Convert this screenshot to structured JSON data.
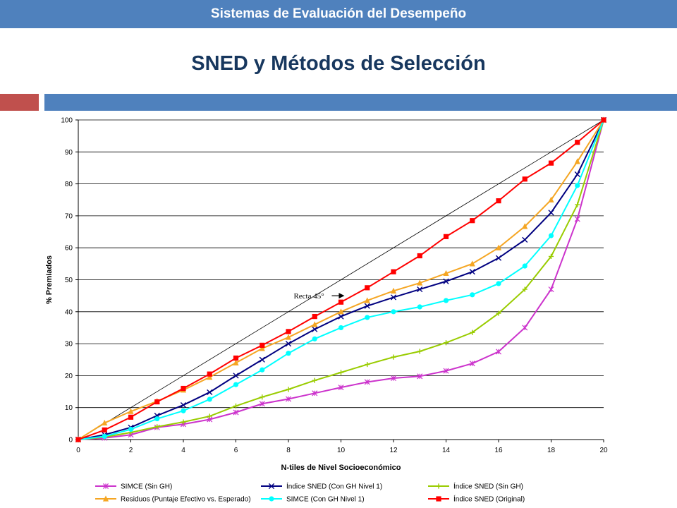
{
  "header": {
    "title": "Sistemas de Evaluación del Desempeño"
  },
  "slide": {
    "title": "SNED y Métodos de Selección"
  },
  "colors": {
    "header_bar": "#4f81bd",
    "accent_red": "#c0504d",
    "title_text": "#17375e"
  },
  "chart_data": {
    "type": "line",
    "xlabel": "N-tiles de Nivel Socioeconómico",
    "ylabel": "% Premiados",
    "xlim": [
      0,
      20
    ],
    "ylim": [
      0,
      100
    ],
    "x_ticks": [
      0,
      2,
      4,
      6,
      8,
      10,
      12,
      14,
      16,
      18,
      20
    ],
    "y_ticks": [
      0,
      10,
      20,
      30,
      40,
      50,
      60,
      70,
      80,
      90,
      100
    ],
    "grid": "horizontal",
    "legend_position": "bottom",
    "annotation": {
      "text": "Recta 45°",
      "x": 8.2,
      "y": 45
    },
    "x": [
      0,
      1,
      2,
      3,
      4,
      5,
      6,
      7,
      8,
      9,
      10,
      11,
      12,
      13,
      14,
      15,
      16,
      17,
      18,
      19,
      20
    ],
    "series": [
      {
        "name": "SIMCE (Sin GH)",
        "color": "#cc33cc",
        "marker": "star",
        "values": [
          0,
          0.5,
          1.5,
          3.8,
          4.8,
          6.3,
          8.5,
          11.2,
          12.7,
          14.5,
          16.3,
          18,
          19.2,
          19.8,
          21.5,
          23.8,
          27.5,
          35,
          47,
          69,
          100
        ]
      },
      {
        "name": "Índice SNED (Con GH Nivel 1)",
        "color": "#000080",
        "marker": "x",
        "values": [
          0,
          1.5,
          3.8,
          7.5,
          10.8,
          14.8,
          20,
          25,
          30,
          34.5,
          38.5,
          41.8,
          44.5,
          47,
          49.5,
          52.5,
          56.8,
          62.5,
          71,
          83,
          100
        ]
      },
      {
        "name": "Índice SNED (Sin GH)",
        "color": "#99cc00",
        "marker": "plus",
        "values": [
          0,
          0.8,
          2.2,
          4,
          5.5,
          7.3,
          10.5,
          13.3,
          15.7,
          18.5,
          21,
          23.5,
          25.8,
          27.6,
          30.3,
          33.5,
          39.5,
          47,
          57.3,
          73.5,
          100
        ]
      },
      {
        "name": "Residuos (Puntaje Efectivo vs. Esperado)",
        "color": "#f5a623",
        "marker": "triangle",
        "values": [
          0,
          5.2,
          8.8,
          12,
          15.5,
          19.5,
          24,
          28.5,
          32,
          36,
          40,
          43.5,
          46.5,
          49,
          52,
          55,
          60,
          66.7,
          75,
          87,
          100
        ]
      },
      {
        "name": "SIMCE (Con GH Nivel 1)",
        "color": "#00ffff",
        "marker": "circle",
        "values": [
          0,
          1,
          3.2,
          6.5,
          9,
          12.6,
          17.2,
          21.8,
          27,
          31.5,
          35,
          38.2,
          40,
          41.5,
          43.5,
          45.3,
          48.8,
          54.3,
          63.8,
          79.5,
          100
        ]
      },
      {
        "name": "Índice SNED (Original)",
        "color": "#ff0000",
        "marker": "square",
        "values": [
          0,
          3,
          7,
          11.8,
          16,
          20.5,
          25.5,
          29.5,
          33.8,
          38.5,
          43,
          47.5,
          52.5,
          57.5,
          63.5,
          68.5,
          74.7,
          81.5,
          86.5,
          93,
          100
        ]
      }
    ]
  }
}
